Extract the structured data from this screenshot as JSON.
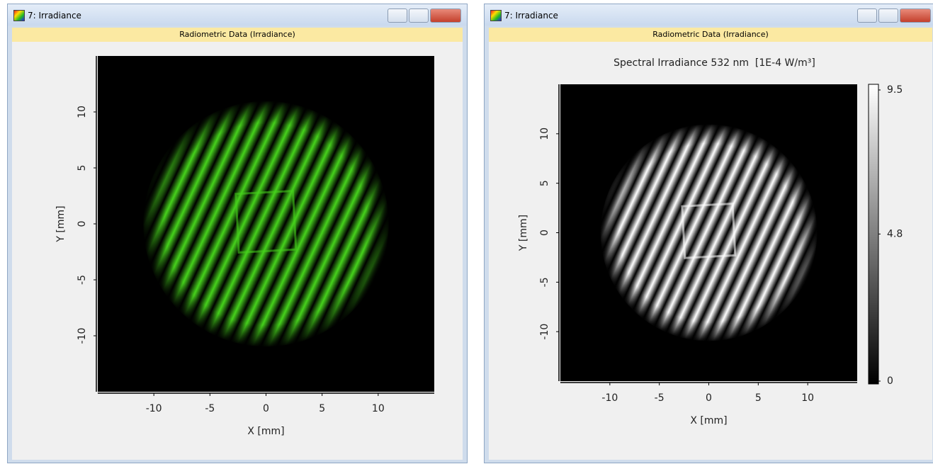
{
  "windows": [
    {
      "title": "7: Irradiance",
      "header": "Radiometric Data (Irradiance)",
      "plot": {
        "type": "heatmap",
        "xlabel": "X [mm]",
        "ylabel": "Y [mm]",
        "xlim": [
          -15,
          15
        ],
        "ylim": [
          -15,
          15
        ],
        "xticks": [
          -10,
          -5,
          0,
          5,
          10
        ],
        "yticks": [
          -10,
          -5,
          0,
          5,
          10
        ],
        "color": "#46d21c"
      }
    },
    {
      "title": "7: Irradiance",
      "header": "Radiometric Data (Irradiance)",
      "plot": {
        "type": "heatmap",
        "title": "Spectral Irradiance 532 nm  [1E-4 W/m³]",
        "xlabel": "X [mm]",
        "ylabel": "Y [mm]",
        "xlim": [
          -15,
          15
        ],
        "ylim": [
          -15,
          15
        ],
        "xticks": [
          -10,
          -5,
          0,
          5,
          10
        ],
        "yticks": [
          -10,
          -5,
          0,
          5,
          10
        ],
        "color": "#ffffff",
        "colorbar_ticks": [
          0,
          4.8,
          9.5
        ]
      }
    }
  ]
}
